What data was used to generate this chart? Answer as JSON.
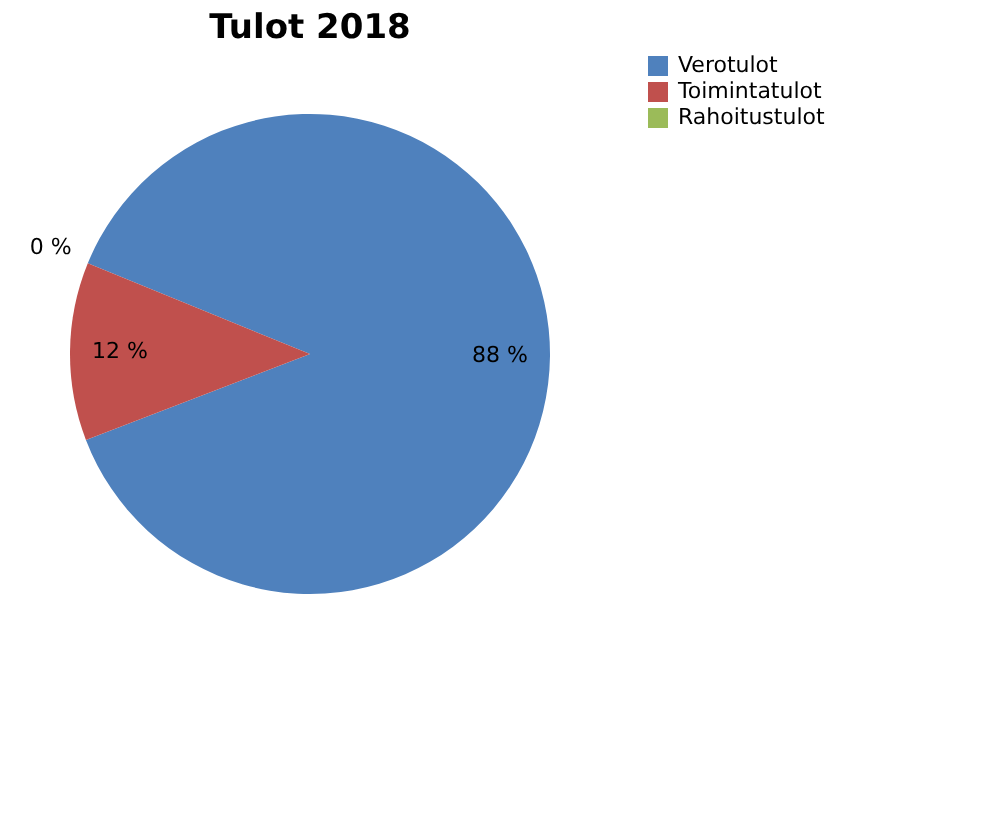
{
  "chart_data": {
    "type": "pie",
    "title": "Tulot 2018",
    "categories": [
      "Verotulot",
      "Toimintatulot",
      "Rahoitustulot"
    ],
    "values": [
      88,
      12,
      0
    ],
    "colors": [
      "#4f81bd",
      "#c0504d",
      "#9bbb59"
    ],
    "value_labels": [
      "88 %",
      "12 %",
      "0 %"
    ],
    "legend": "right"
  }
}
